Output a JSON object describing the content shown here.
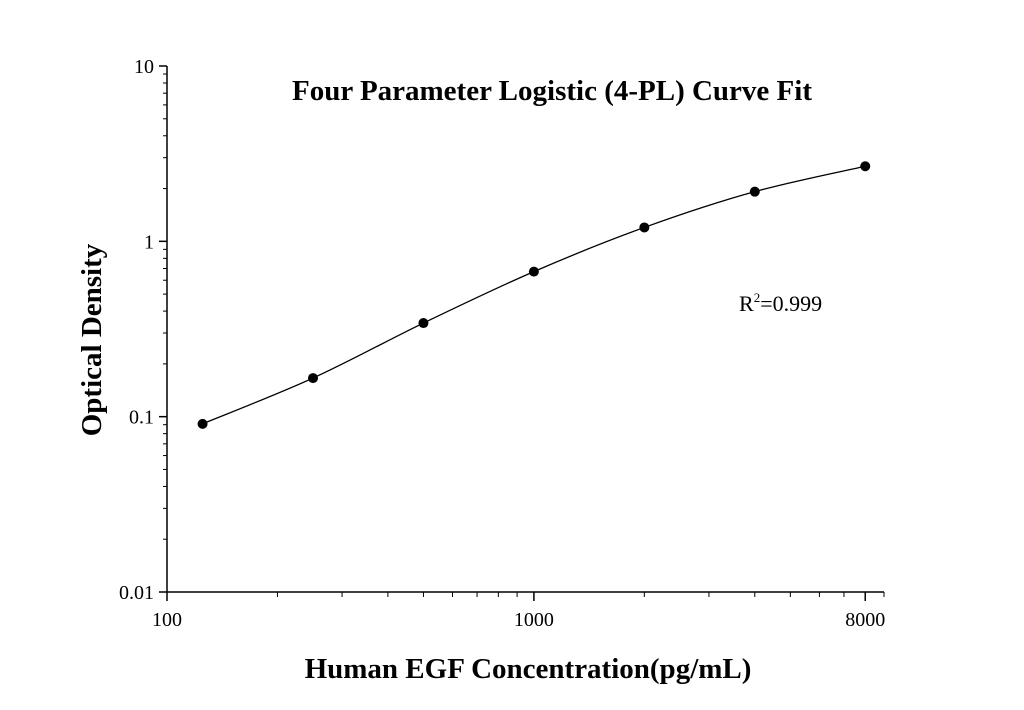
{
  "chart_data": {
    "type": "scatter",
    "title": "Four Parameter Logistic (4-PL) Curve Fit",
    "xlabel": "Human EGF Concentration(pg/mL)",
    "ylabel": "Optical Density",
    "x_scale": "log",
    "y_scale": "log",
    "xlim": [
      100,
      9000
    ],
    "ylim": [
      0.01,
      10
    ],
    "x_ticks": [
      {
        "value": 100,
        "label": "100"
      },
      {
        "value": 1000,
        "label": "1000"
      },
      {
        "value": 8000,
        "label": "8000"
      }
    ],
    "y_ticks": [
      {
        "value": 0.01,
        "label": "0.01"
      },
      {
        "value": 0.1,
        "label": "0.1"
      },
      {
        "value": 1,
        "label": "1"
      },
      {
        "value": 10,
        "label": "10"
      }
    ],
    "series": [
      {
        "x": [
          125,
          250,
          500,
          1000,
          2000,
          4000,
          8000
        ],
        "y": [
          0.091,
          0.166,
          0.342,
          0.672,
          1.2,
          1.92,
          2.68
        ],
        "marker": "filled-circle",
        "color": "#000000"
      }
    ],
    "fit": {
      "model": "4-PL",
      "color": "#000000"
    },
    "annotations": [
      {
        "text_main": "R",
        "text_sup": "2",
        "text_rest": "=0.999"
      }
    ],
    "grid": false,
    "legend": "none"
  }
}
